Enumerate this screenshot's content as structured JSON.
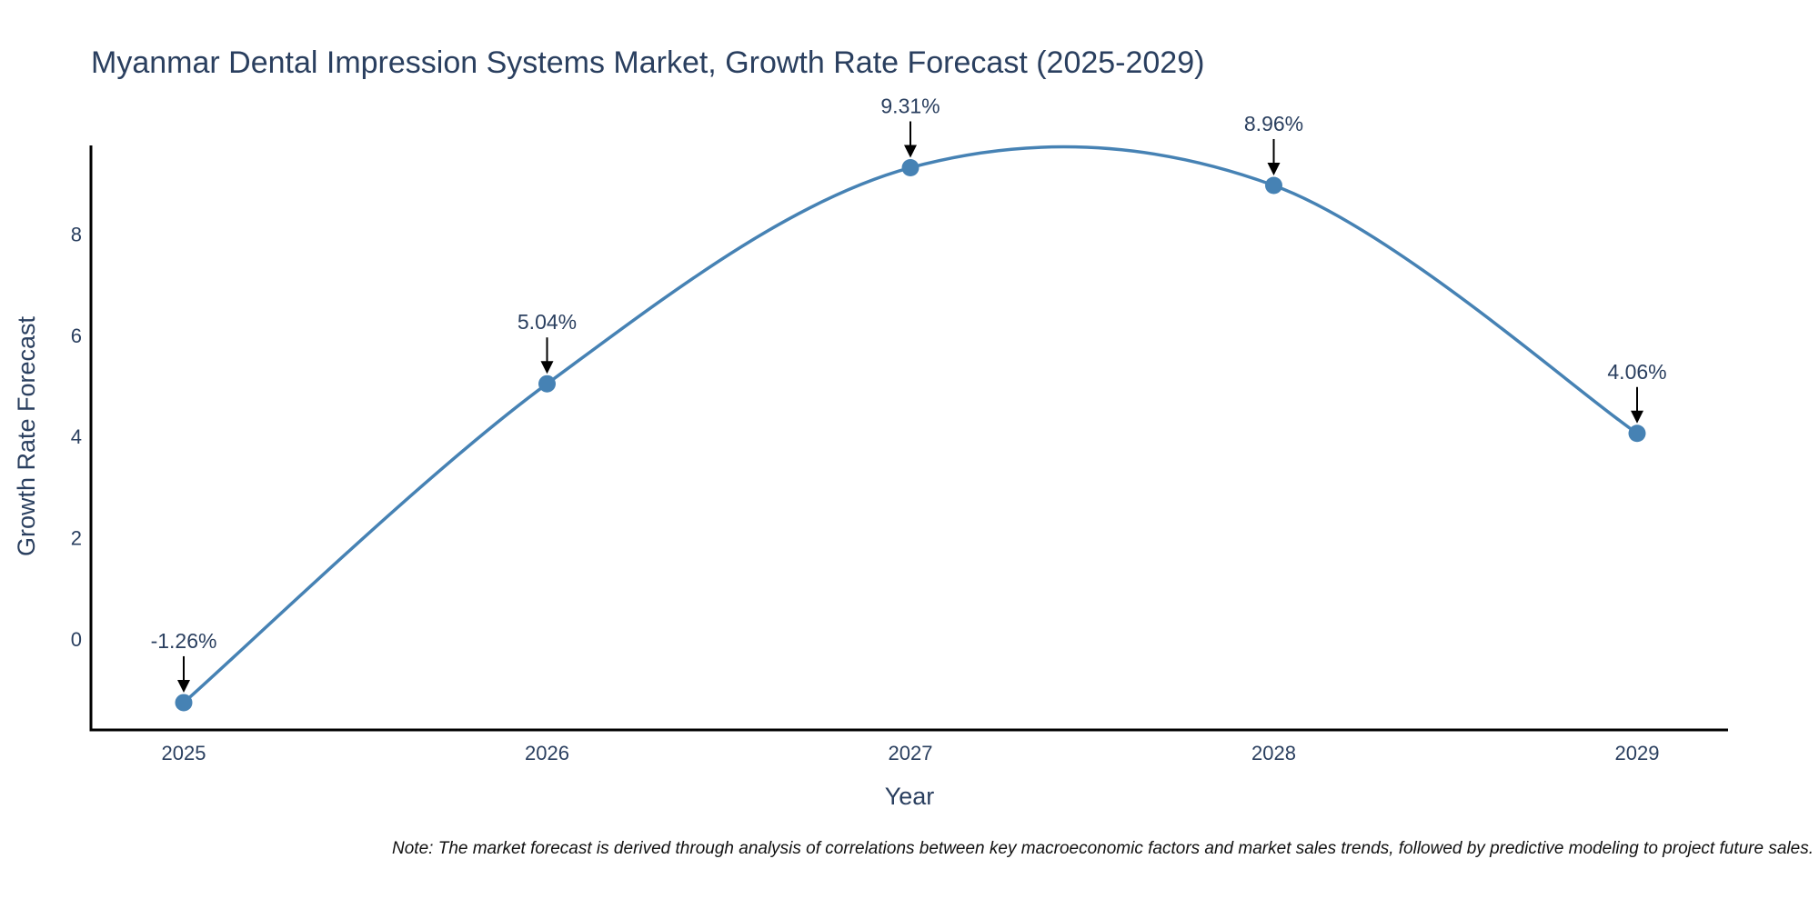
{
  "chart_data": {
    "type": "line",
    "title": "Myanmar Dental Impression Systems Market, Growth Rate Forecast (2025-2029)",
    "xlabel": "Year",
    "ylabel": "Growth Rate Forecast",
    "categories": [
      "2025",
      "2026",
      "2027",
      "2028",
      "2029"
    ],
    "series": [
      {
        "name": "Growth Rate Forecast",
        "values": [
          -1.26,
          5.04,
          9.31,
          8.96,
          4.06
        ],
        "labels": [
          "-1.26%",
          "5.04%",
          "9.31%",
          "8.96%",
          "4.06%"
        ]
      }
    ],
    "y_ticks": [
      0,
      2,
      4,
      6,
      8
    ],
    "y_tick_labels": [
      "0",
      "2",
      "4",
      "6",
      "8"
    ],
    "ylim": [
      -1.8,
      9.75
    ],
    "grid": false,
    "line_shape": "spline",
    "colors": {
      "line": "#4682b4",
      "marker": "#4682b4",
      "arrow": "#000000",
      "axis": "#000000"
    }
  },
  "note": "Note: The market forecast is derived through analysis of correlations between key macroeconomic factors and market sales trends, followed by predictive modeling to project future sales."
}
